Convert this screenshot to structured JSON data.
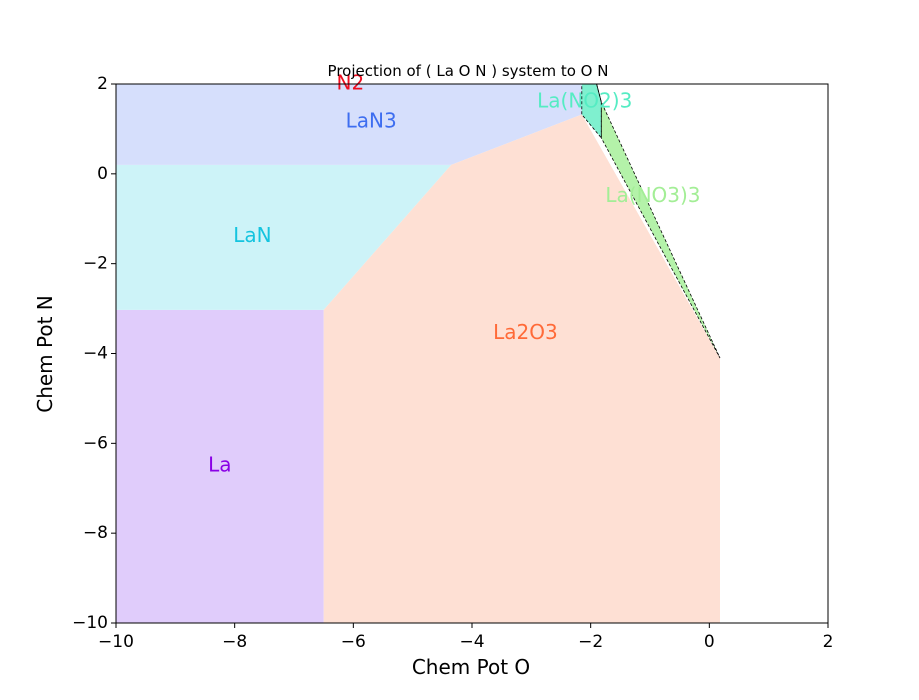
{
  "chart_data": {
    "type": "area",
    "title": "Projection of ( La O N ) system to O N",
    "xlabel": "Chem Pot O",
    "ylabel": "Chem Pot N",
    "xlim": [
      -10,
      2
    ],
    "ylim": [
      -10,
      2
    ],
    "xticks": [
      -10,
      -8,
      -6,
      -4,
      -2,
      0,
      2
    ],
    "yticks": [
      -10,
      -8,
      -6,
      -4,
      -2,
      0,
      2
    ],
    "xtick_labels": [
      "−10",
      "−8",
      "−6",
      "−4",
      "−2",
      "0",
      "2"
    ],
    "ytick_labels": [
      "−10",
      "−8",
      "−6",
      "−4",
      "−2",
      "0",
      "2"
    ],
    "regions": [
      {
        "name": "La",
        "fill": "#e0ccfb",
        "label_color": "#8a00e6",
        "label_pos": [
          -8.25,
          -6.5
        ],
        "polygon": [
          [
            -10,
            -10
          ],
          [
            -6.5,
            -10
          ],
          [
            -6.5,
            -3.03
          ],
          [
            -10,
            -3.03
          ]
        ]
      },
      {
        "name": "LaN",
        "fill": "#cdf3f8",
        "label_color": "#14c4df",
        "label_pos": [
          -7.7,
          -1.4
        ],
        "polygon": [
          [
            -10,
            -3.03
          ],
          [
            -6.5,
            -3.03
          ],
          [
            -4.35,
            0.2
          ],
          [
            -10,
            0.2
          ]
        ]
      },
      {
        "name": "LaN3",
        "fill": "#d6dffc",
        "label_color": "#3e6ef0",
        "label_pos": [
          -5.7,
          1.15
        ],
        "polygon": [
          [
            -10,
            0.2
          ],
          [
            -4.35,
            0.2
          ],
          [
            -2.15,
            1.32
          ],
          [
            -2.15,
            2
          ],
          [
            -10,
            2
          ]
        ]
      },
      {
        "name": "La2O3",
        "fill": "#fee0d4",
        "label_color": "#ff6a38",
        "label_pos": [
          -3.1,
          -3.55
        ],
        "polygon": [
          [
            -6.5,
            -10
          ],
          [
            0.18,
            -10
          ],
          [
            0.18,
            -4.1
          ],
          [
            -2.15,
            1.32
          ],
          [
            -4.35,
            0.2
          ],
          [
            -6.5,
            -3.03
          ]
        ]
      },
      {
        "name": "La(NO2)3",
        "fill": "#7ff0cf",
        "label_color": "#55ecc3",
        "label_pos": [
          -2.1,
          1.6
        ],
        "polygon": [
          [
            -2.15,
            2
          ],
          [
            -1.9,
            2
          ],
          [
            -1.82,
            1.6
          ],
          [
            -1.82,
            0.8
          ],
          [
            -2.15,
            1.32
          ]
        ]
      },
      {
        "name": "La(NO3)3",
        "fill": "#b4f2a9",
        "label_color": "#a3ee96",
        "label_pos": [
          -0.95,
          -0.5
        ],
        "polygon": [
          [
            -1.9,
            2
          ],
          [
            -1.82,
            1.6
          ],
          [
            0.18,
            -4.1
          ],
          [
            -1.82,
            0.8
          ],
          [
            -1.82,
            1.6
          ]
        ]
      }
    ],
    "annotations": [
      {
        "text": "N2",
        "color": "#ee0e20",
        "pos": [
          -6.05,
          2.0
        ]
      }
    ]
  }
}
